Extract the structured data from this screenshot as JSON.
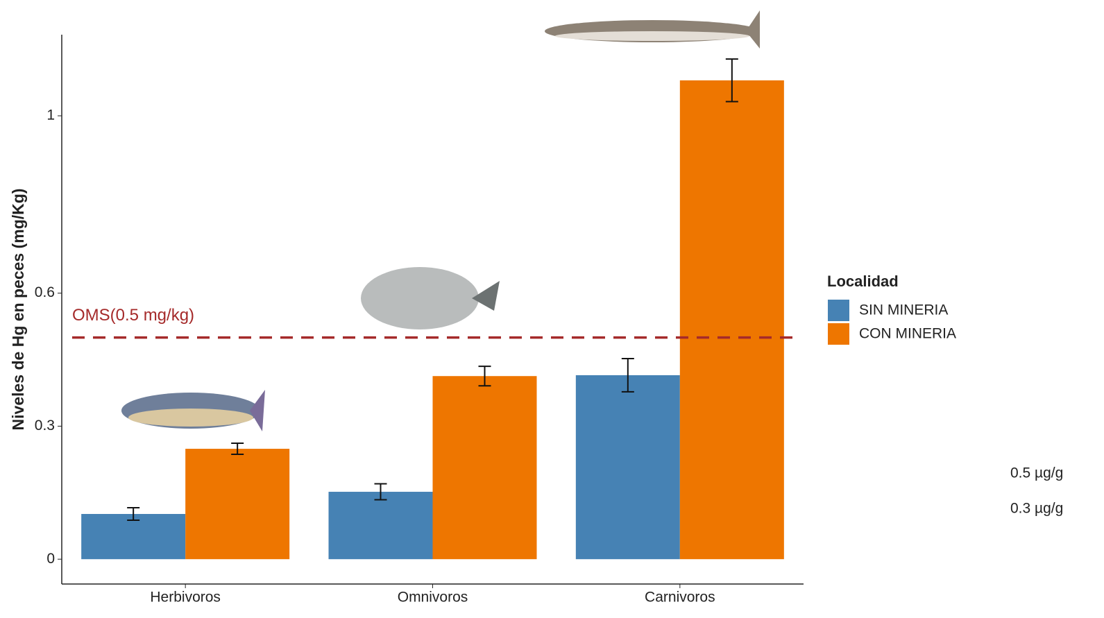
{
  "chart_data": {
    "type": "bar",
    "ylabel": "Niveles de Hg en peces (mg/Kg)",
    "categories": [
      "Herbivoros",
      "Omnivoros",
      "Carnivoros"
    ],
    "series": [
      {
        "name": "SIN MINERIA",
        "color": "#4682b4",
        "values": [
          0.102,
          0.152,
          0.415
        ],
        "errors": [
          0.014,
          0.018,
          0.0375
        ]
      },
      {
        "name": "CON MINERIA",
        "color": "#ee7600",
        "values": [
          0.249,
          0.413,
          1.08
        ],
        "errors": [
          0.0125,
          0.022,
          0.048
        ]
      }
    ],
    "ylim": [
      -0.056,
      1.183
    ],
    "yticks": [
      0,
      0.3,
      0.6,
      1
    ],
    "legend_title": "Localidad",
    "legend_position": "right",
    "reference_line": {
      "value": 0.5,
      "label": "OMS(0.5 mg/kg)",
      "color": "#a52a2a"
    },
    "annotations": [
      "0.5 µg/g",
      "0.3 µg/g"
    ]
  }
}
